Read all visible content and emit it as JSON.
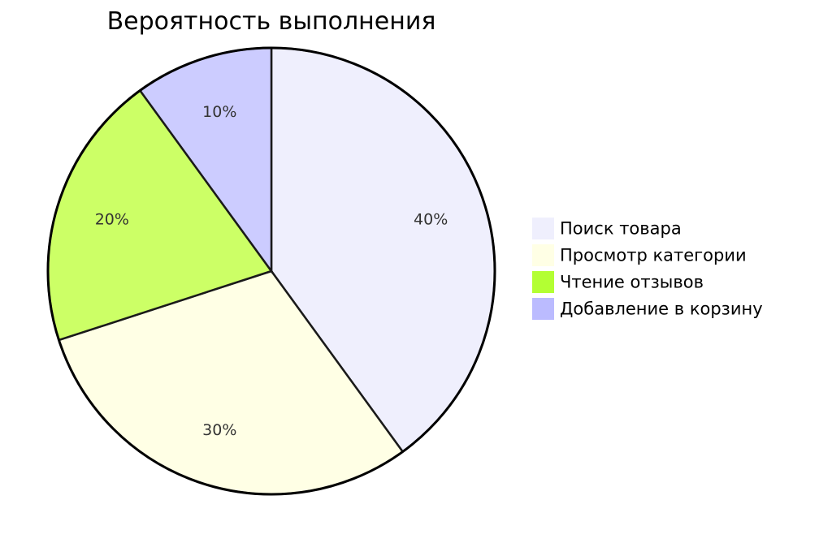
{
  "chart_data": {
    "type": "pie",
    "title": "Вероятность выполнения",
    "slices": [
      {
        "label": "Поиск товара",
        "value": 40,
        "display": "40%",
        "color": "#EFEFFD"
      },
      {
        "label": "Просмотр категории",
        "value": 30,
        "display": "30%",
        "color": "#FFFFE5"
      },
      {
        "label": "Чтение отзывов",
        "value": 20,
        "display": "20%",
        "color": "#CCFF66"
      },
      {
        "label": "Добавление в корзину",
        "value": 10,
        "display": "10%",
        "color": "#CCCCFF"
      }
    ],
    "legend_colors": [
      "#EFEFFD",
      "#FFFFE5",
      "#B3FF33",
      "#BBBBFF"
    ],
    "legend_position": "right",
    "start_angle": "top",
    "direction": "clockwise"
  }
}
